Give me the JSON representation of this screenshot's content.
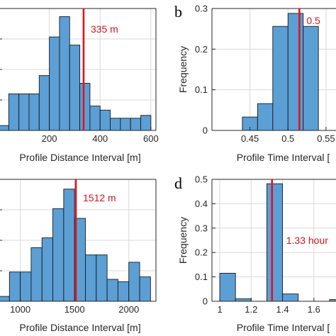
{
  "colors": {
    "bar_fill": "#5b9fd5",
    "bar_stroke": "#1a1a1a",
    "median_line": "#e0141e",
    "annotation": "#d4151d",
    "grid": "#d9d9d9",
    "axis": "#262626"
  },
  "chart_data": [
    {
      "panel": "a",
      "type": "bar",
      "panel_letter": "",
      "xlabel": "Profile Distance Interval [m]",
      "ylabel": "",
      "xlim": [
        0,
        620
      ],
      "ylim": [
        0,
        0.3
      ],
      "xticks": [
        200,
        400,
        600
      ],
      "yticks": [],
      "bin_edges": [
        0,
        40,
        80,
        120,
        160,
        200,
        240,
        280,
        320,
        360,
        400,
        440,
        480,
        520,
        560,
        600
      ],
      "values": [
        0.012,
        0.09,
        0.09,
        0.09,
        0.135,
        0.23,
        0.28,
        0.21,
        0.116,
        0.06,
        0.05,
        0.03,
        0.03,
        0.03,
        0.037
      ],
      "median_line": 335,
      "annotation": "335 m",
      "grid": true
    },
    {
      "panel": "b",
      "type": "bar",
      "panel_letter": "b",
      "xlabel": "Profile Time Interval [",
      "ylabel": "Frequency",
      "xlim": [
        0.4,
        0.565
      ],
      "ylim": [
        0,
        0.3
      ],
      "xticks": [
        0.45,
        0.5,
        0.55
      ],
      "xticklabels": [
        "0.45",
        "0.5",
        "0.55"
      ],
      "yticks": [
        0,
        0.1,
        0.2,
        0.3
      ],
      "yticklabels": [
        "0",
        "0.1",
        "0.2",
        "0.3"
      ],
      "bin_edges": [
        0.44,
        0.46,
        0.48,
        0.5,
        0.52,
        0.54
      ],
      "values": [
        0.033,
        0.066,
        0.256,
        0.288,
        0.256
      ],
      "median_line": 0.515,
      "annotation": "0.5",
      "grid": true
    },
    {
      "panel": "c",
      "type": "bar",
      "panel_letter": "",
      "xlabel": "Profile Distance Interval [m]",
      "ylabel": "",
      "xlim": [
        800,
        2250
      ],
      "ylim": [
        0,
        0.25
      ],
      "xticks": [
        1000,
        1500,
        2000
      ],
      "xticklabels": [
        "1000",
        "1500",
        "2000"
      ],
      "yticks": [],
      "bin_edges": [
        800,
        900,
        1000,
        1100,
        1200,
        1300,
        1400,
        1500,
        1600,
        1700,
        1800,
        1900,
        2000,
        2100,
        2200
      ],
      "values": [
        0.01,
        0.06,
        0.06,
        0.11,
        0.13,
        0.19,
        0.23,
        0.17,
        0.095,
        0.095,
        0.045,
        0.04,
        0.08,
        0.05
      ],
      "median_line": 1512,
      "annotation": "1512 m",
      "grid": true
    },
    {
      "panel": "d",
      "type": "bar",
      "panel_letter": "d",
      "xlabel": "Profile Time Interval [",
      "ylabel": "Frequency",
      "xlim": [
        0.95,
        1.75
      ],
      "ylim": [
        0,
        0.5
      ],
      "xticks": [
        1,
        1.2,
        1.4,
        1.6
      ],
      "xticklabels": [
        "1",
        "1.2",
        "1.4",
        "1.6"
      ],
      "yticks": [
        0,
        0.1,
        0.2,
        0.3,
        0.4,
        0.5
      ],
      "yticklabels": [
        "0",
        "0.1",
        "0.2",
        "0.3",
        "0.4",
        "0.5"
      ],
      "bin_edges": [
        1.0,
        1.1,
        1.2,
        1.3,
        1.4,
        1.5,
        1.6,
        1.7,
        1.8
      ],
      "values": [
        0.115,
        0.01,
        0.0,
        0.482,
        0.03,
        0.0,
        0.0,
        0.007
      ],
      "median_line": 1.333,
      "annotation": "1.33 hour",
      "grid": true
    }
  ]
}
